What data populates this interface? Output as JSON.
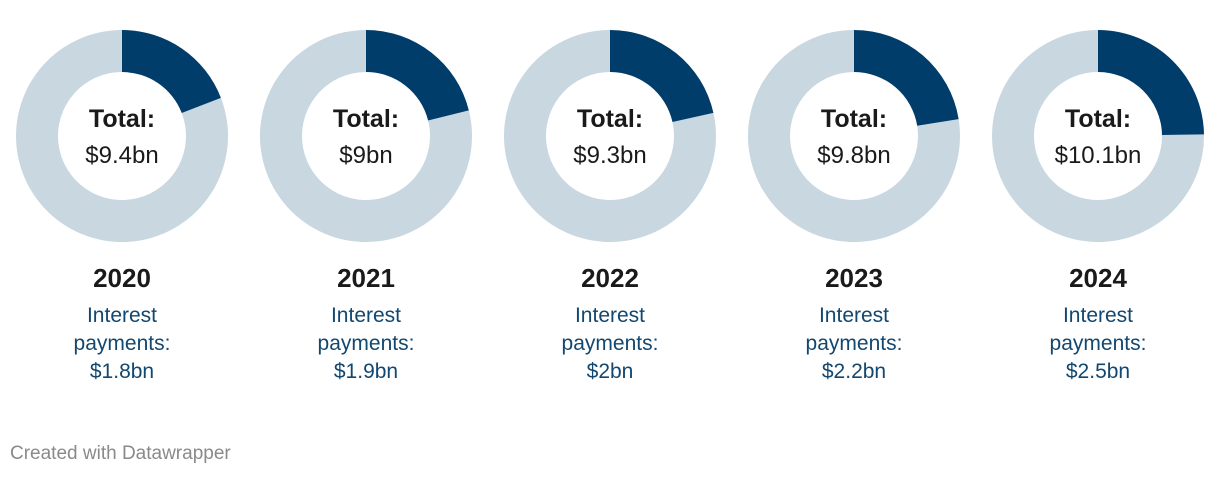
{
  "chart_data": {
    "type": "pie",
    "subtype": "donut",
    "interest_label": "Interest payments:",
    "total_label": "Total:",
    "colors": {
      "interest": "#003d6b",
      "remainder": "#c9d7e1"
    },
    "items": [
      {
        "year": "2020",
        "total": 9.4,
        "total_text": "$9.4bn",
        "interest": 1.8,
        "interest_text": "$1.8bn"
      },
      {
        "year": "2021",
        "total": 9.0,
        "total_text": "$9bn",
        "interest": 1.9,
        "interest_text": "$1.9bn"
      },
      {
        "year": "2022",
        "total": 9.3,
        "total_text": "$9.3bn",
        "interest": 2.0,
        "interest_text": "$2bn"
      },
      {
        "year": "2023",
        "total": 9.8,
        "total_text": "$9.8bn",
        "interest": 2.2,
        "interest_text": "$2.2bn"
      },
      {
        "year": "2024",
        "total": 10.1,
        "total_text": "$10.1bn",
        "interest": 2.5,
        "interest_text": "$2.5bn"
      }
    ]
  },
  "footer": {
    "credit": "Created with Datawrapper"
  }
}
